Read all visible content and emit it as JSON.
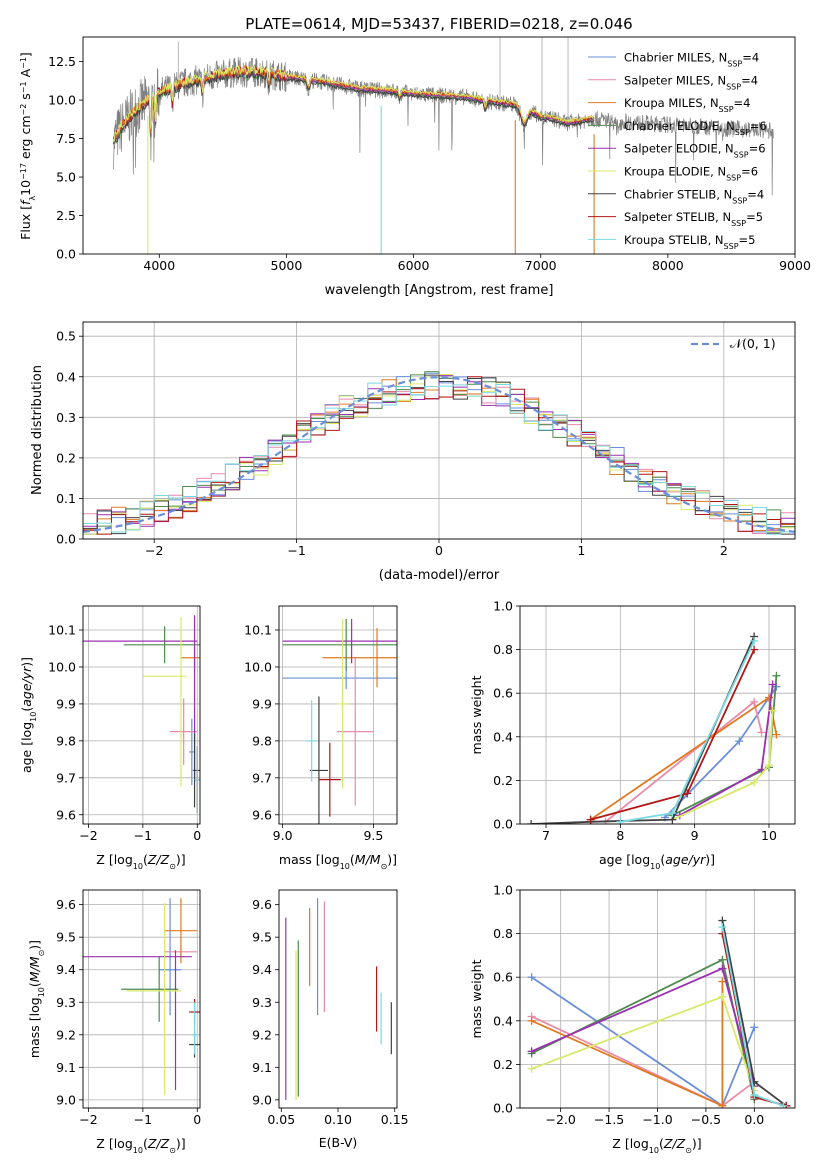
{
  "colors": [
    "#6a8fd8",
    "#e88aa8",
    "#e07a20",
    "#4f8a4f",
    "#9a30b0",
    "#d8e868",
    "#404040",
    "#b01818",
    "#7ad8e0",
    "#808080"
  ],
  "chart_data": [
    {
      "id": "spectrum",
      "type": "line",
      "title": "PLATE=0614, MJD=53437, FIBERID=0218, z=0.046",
      "xlabel": "wavelength [Angstrom, rest frame]",
      "ylabel": "Flux [fλ10⁻¹⁷ erg cm⁻² s⁻¹ A⁻¹]",
      "xlim": [
        3400,
        9000
      ],
      "ylim": [
        0,
        14.1
      ],
      "xticks": [
        4000,
        5000,
        6000,
        7000,
        8000,
        9000
      ],
      "yticks": [
        0.0,
        2.5,
        5.0,
        7.5,
        10.0,
        12.5
      ],
      "legend_position": "upper right",
      "legend": [
        "Chabrier MILES, NSSP=4",
        "Salpeter MILES, NSSP=4",
        "Kroupa MILES, NSSP=4",
        "Chabrier ELODIE, NSSP=6",
        "Salpeter ELODIE, NSSP=6",
        "Kroupa ELODIE, NSSP=6",
        "Chabrier STELIB, NSSP=4",
        "Salpeter STELIB, NSSP=5",
        "Kroupa STELIB, NSSP=5"
      ],
      "continuum": {
        "x": [
          3640,
          3700,
          3800,
          3900,
          4000,
          4200,
          4400,
          4600,
          4800,
          5000,
          5200,
          5400,
          5600,
          5800,
          6000,
          6200,
          6400,
          6600,
          6800,
          6900,
          7000,
          7100,
          7200,
          7300,
          7400,
          7600,
          7800,
          8000,
          8200,
          8400,
          8600,
          8800
        ],
        "y": [
          7.3,
          8.2,
          9.2,
          9.9,
          10.5,
          11.1,
          11.5,
          11.8,
          11.8,
          11.5,
          11.3,
          11.0,
          10.7,
          10.6,
          10.4,
          10.3,
          10.2,
          9.9,
          9.7,
          9.4,
          8.9,
          8.8,
          8.5,
          8.6,
          8.8,
          8.6,
          8.5,
          8.4,
          8.3,
          8.2,
          8.1,
          8.0
        ]
      },
      "model_extent": [
        3640,
        7420
      ],
      "data_extent": [
        3640,
        8830
      ]
    },
    {
      "id": "residuals",
      "type": "histogram",
      "xlabel": "(data-model)/error",
      "ylabel": "Normed distribution",
      "xlim": [
        -2.5,
        2.5
      ],
      "ylim": [
        0,
        0.535
      ],
      "xticks": [
        -2,
        -1,
        0,
        1,
        2
      ],
      "yticks": [
        0.0,
        0.1,
        0.2,
        0.3,
        0.4,
        0.5
      ],
      "legend": [
        "𝒩(0, 1)"
      ],
      "legend_position": "upper right",
      "bins": [
        -2.5,
        2.5,
        50
      ],
      "reference": {
        "name": "𝒩(0, 1)",
        "mean": 0,
        "sigma": 1
      }
    },
    {
      "id": "age-vs-Z",
      "type": "errorbar",
      "xlabel": "Z [log₁₀(Z/Z⊙)]",
      "ylabel": "age  [log₁₀(age/yr)]",
      "xlim": [
        -2.1,
        0.05
      ],
      "ylim": [
        9.575,
        10.165
      ],
      "xticks": [
        -2,
        -1,
        0
      ],
      "yticks": [
        9.6,
        9.7,
        9.8,
        9.9,
        10.0,
        10.1
      ],
      "points": [
        {
          "x": -0.1,
          "y": 9.77,
          "xerr": [
            0.05,
            0.05
          ],
          "yerr": [
            0.09,
            0.09
          ]
        },
        {
          "x": -0.25,
          "y": 9.825,
          "xerr": [
            0.25,
            0.25
          ],
          "yerr": [
            0.09,
            0.09
          ]
        },
        {
          "x": -0.05,
          "y": 10.025,
          "xerr": [
            0.25,
            0.25
          ],
          "yerr": [
            0.03,
            0.03
          ]
        },
        {
          "x": -0.6,
          "y": 10.06,
          "xerr": [
            0.75,
            0.75
          ],
          "yerr": [
            0.05,
            0.05
          ]
        },
        {
          "x": -0.05,
          "y": 10.07,
          "xerr": [
            2.05,
            0.05
          ],
          "yerr": [
            0.38,
            0.07
          ]
        },
        {
          "x": -0.3,
          "y": 9.975,
          "xerr": [
            0.7,
            0.1
          ],
          "yerr": [
            0.3,
            0.16
          ]
        },
        {
          "x": -0.05,
          "y": 9.72,
          "xerr": [
            0.03,
            0.22
          ],
          "yerr": [
            0.1,
            0.1
          ]
        },
        {
          "x": 0.0,
          "y": 9.695,
          "xerr": [
            0.05,
            0.05
          ],
          "yerr": [
            0.09,
            0.09
          ]
        },
        {
          "x": 0.0,
          "y": 9.695,
          "xerr": [
            0.05,
            0.05
          ],
          "yerr": [
            0.09,
            0.09
          ]
        }
      ]
    },
    {
      "id": "age-vs-mass",
      "type": "errorbar",
      "xlabel": "mass [log₁₀(M/M⊙)]",
      "ylabel": "",
      "xlim": [
        8.98,
        9.63
      ],
      "ylim": [
        9.575,
        10.165
      ],
      "xticks": [
        9.0,
        9.5
      ],
      "yticks": [
        9.6,
        9.7,
        9.8,
        9.9,
        10.0,
        10.1
      ],
      "points": [
        {
          "x": 9.35,
          "y": 9.97,
          "xerr": [
            0.35,
            0.35
          ],
          "yerr": [
            0.03,
            0.03
          ]
        },
        {
          "x": 9.4,
          "y": 9.825,
          "xerr": [
            0.1,
            0.1
          ],
          "yerr": [
            0.2,
            0.2
          ]
        },
        {
          "x": 9.52,
          "y": 10.025,
          "xerr": [
            0.3,
            0.3
          ],
          "yerr": [
            0.08,
            0.08
          ]
        },
        {
          "x": 9.35,
          "y": 10.06,
          "xerr": [
            0.35,
            0.35
          ],
          "yerr": [
            0.07,
            0.07
          ]
        },
        {
          "x": 9.38,
          "y": 10.07,
          "xerr": [
            0.38,
            0.38
          ],
          "yerr": [
            0.06,
            0.06
          ]
        },
        {
          "x": 9.33,
          "y": 9.9,
          "xerr": [
            0.03,
            0.03
          ],
          "yerr": [
            0.23,
            0.23
          ]
        },
        {
          "x": 9.2,
          "y": 9.72,
          "xerr": [
            0.05,
            0.05
          ],
          "yerr": [
            0.2,
            0.2
          ]
        },
        {
          "x": 9.26,
          "y": 9.695,
          "xerr": [
            0.06,
            0.06
          ],
          "yerr": [
            0.1,
            0.1
          ]
        },
        {
          "x": 9.16,
          "y": 9.8,
          "xerr": [
            0.03,
            0.03
          ],
          "yerr": [
            0.11,
            0.11
          ]
        }
      ]
    },
    {
      "id": "weight-vs-age",
      "type": "line",
      "xlabel": "age  [log₁₀(age/yr)]",
      "ylabel": "mass weight",
      "xlim": [
        6.65,
        10.35
      ],
      "ylim": [
        0,
        1.0
      ],
      "xticks": [
        7,
        8,
        9,
        10
      ],
      "yticks": [
        0.0,
        0.2,
        0.4,
        0.6,
        0.8,
        1.0
      ],
      "series": [
        {
          "values": [
            [
              8.6,
              0.03
            ],
            [
              9.6,
              0.38
            ],
            [
              10.1,
              0.63
            ]
          ]
        },
        {
          "values": [
            [
              7.8,
              0.01
            ],
            [
              9.8,
              0.56
            ],
            [
              9.9,
              0.42
            ]
          ]
        },
        {
          "values": [
            [
              7.6,
              0.02
            ],
            [
              10.0,
              0.58
            ],
            [
              10.1,
              0.41
            ]
          ]
        },
        {
          "values": [
            [
              8.7,
              0.04
            ],
            [
              10.0,
              0.26
            ],
            [
              10.1,
              0.68
            ]
          ]
        },
        {
          "values": [
            [
              8.8,
              0.04
            ],
            [
              9.9,
              0.25
            ],
            [
              10.05,
              0.64
            ]
          ]
        },
        {
          "values": [
            [
              8.7,
              0.02
            ],
            [
              9.8,
              0.19
            ],
            [
              10.0,
              0.27
            ],
            [
              10.05,
              0.52
            ]
          ]
        },
        {
          "values": [
            [
              6.8,
              0.0
            ],
            [
              7.6,
              0.01
            ],
            [
              8.7,
              0.02
            ],
            [
              9.8,
              0.86
            ]
          ]
        },
        {
          "values": [
            [
              7.6,
              0.02
            ],
            [
              8.9,
              0.14
            ],
            [
              9.8,
              0.8
            ]
          ]
        },
        {
          "values": [
            [
              8.0,
              0.01
            ],
            [
              8.7,
              0.05
            ],
            [
              9.8,
              0.84
            ]
          ]
        }
      ]
    },
    {
      "id": "mass-vs-Z",
      "type": "errorbar",
      "xlabel": "Z [log₁₀(Z/Z⊙)]",
      "ylabel": "mass [log₁₀(M/M⊙)]",
      "xlim": [
        -2.1,
        0.05
      ],
      "ylim": [
        8.975,
        9.645
      ],
      "xticks": [
        -2,
        -1,
        0
      ],
      "yticks": [
        9.0,
        9.1,
        9.2,
        9.3,
        9.4,
        9.5,
        9.6
      ],
      "points": [
        {
          "x": -0.5,
          "y": 9.4,
          "xerr": [
            0.2,
            0.2
          ],
          "yerr": [
            0.14,
            0.22
          ]
        },
        {
          "x": -0.3,
          "y": 9.455,
          "xerr": [
            0.3,
            0.3
          ],
          "yerr": [
            0.02,
            0.02
          ]
        },
        {
          "x": -0.3,
          "y": 9.52,
          "xerr": [
            0.3,
            0.3
          ],
          "yerr": [
            0.1,
            0.1
          ]
        },
        {
          "x": -0.7,
          "y": 9.34,
          "xerr": [
            0.7,
            0.35
          ],
          "yerr": [
            0.1,
            0.1
          ]
        },
        {
          "x": -0.4,
          "y": 9.44,
          "xerr": [
            1.7,
            0.3
          ],
          "yerr": [
            0.41,
            0.02
          ]
        },
        {
          "x": -0.6,
          "y": 9.335,
          "xerr": [
            0.7,
            0.3
          ],
          "yerr": [
            0.32,
            0.27
          ]
        },
        {
          "x": -0.05,
          "y": 9.17,
          "xerr": [
            0.1,
            0.1
          ],
          "yerr": [
            0.04,
            0.04
          ]
        },
        {
          "x": -0.05,
          "y": 9.27,
          "xerr": [
            0.1,
            0.1
          ],
          "yerr": [
            0.04,
            0.04
          ]
        },
        {
          "x": -0.05,
          "y": 9.2,
          "xerr": [
            0.05,
            0.05
          ],
          "yerr": [
            0.06,
            0.1
          ]
        }
      ]
    },
    {
      "id": "mass-vs-EBV",
      "type": "errorbar",
      "xlabel": "E(B-V)",
      "ylabel": "",
      "xlim": [
        0.048,
        0.152
      ],
      "ylim": [
        8.975,
        9.645
      ],
      "xticks": [
        0.05,
        0.1,
        0.15
      ],
      "yticks": [
        9.0,
        9.1,
        9.2,
        9.3,
        9.4,
        9.5,
        9.6
      ],
      "points": [
        {
          "x": 0.082,
          "y": 9.44,
          "xerr": [
            0,
            0
          ],
          "yerr": [
            0.18,
            0.18
          ]
        },
        {
          "x": 0.088,
          "y": 9.44,
          "xerr": [
            0,
            0
          ],
          "yerr": [
            0.17,
            0.17
          ]
        },
        {
          "x": 0.075,
          "y": 9.47,
          "xerr": [
            0,
            0
          ],
          "yerr": [
            0.12,
            0.12
          ]
        },
        {
          "x": 0.065,
          "y": 9.25,
          "xerr": [
            0,
            0
          ],
          "yerr": [
            0.24,
            0.24
          ]
        },
        {
          "x": 0.054,
          "y": 9.28,
          "xerr": [
            0,
            0
          ],
          "yerr": [
            0.28,
            0.28
          ]
        },
        {
          "x": 0.063,
          "y": 9.23,
          "xerr": [
            0,
            0
          ],
          "yerr": [
            0.23,
            0.23
          ]
        },
        {
          "x": 0.147,
          "y": 9.22,
          "xerr": [
            0,
            0
          ],
          "yerr": [
            0.08,
            0.08
          ]
        },
        {
          "x": 0.134,
          "y": 9.31,
          "xerr": [
            0,
            0
          ],
          "yerr": [
            0.1,
            0.1
          ]
        },
        {
          "x": 0.138,
          "y": 9.25,
          "xerr": [
            0,
            0
          ],
          "yerr": [
            0.08,
            0.08
          ]
        }
      ]
    },
    {
      "id": "weight-vs-Z",
      "type": "line",
      "xlabel": "Z [log₁₀(Z/Z⊙)]",
      "ylabel": "mass weight",
      "xlim": [
        -2.42,
        0.42
      ],
      "ylim": [
        0,
        1.0
      ],
      "xticks": [
        -2.0,
        -1.5,
        -1.0,
        -0.5,
        0.0
      ],
      "yticks": [
        0.0,
        0.2,
        0.4,
        0.6,
        0.8,
        1.0
      ],
      "series": [
        {
          "values": [
            [
              -2.3,
              0.6
            ],
            [
              -0.33,
              0.01
            ],
            [
              0.0,
              0.37
            ]
          ]
        },
        {
          "values": [
            [
              -2.3,
              0.42
            ],
            [
              -0.33,
              0.01
            ],
            [
              0.0,
              0.12
            ]
          ]
        },
        {
          "values": [
            [
              -2.3,
              0.4
            ],
            [
              -0.33,
              0.01
            ],
            [
              -0.33,
              0.58
            ]
          ]
        },
        {
          "values": [
            [
              -2.3,
              0.25
            ],
            [
              -0.33,
              0.68
            ],
            [
              0.0,
              0.04
            ]
          ]
        },
        {
          "values": [
            [
              -2.3,
              0.26
            ],
            [
              -0.33,
              0.64
            ],
            [
              0.0,
              0.1
            ]
          ]
        },
        {
          "values": [
            [
              -2.3,
              0.18
            ],
            [
              -0.33,
              0.51
            ],
            [
              0.0,
              0.08
            ]
          ]
        },
        {
          "values": [
            [
              -0.33,
              0.86
            ],
            [
              0.0,
              0.12
            ],
            [
              0.33,
              0.01
            ]
          ]
        },
        {
          "values": [
            [
              -0.33,
              0.8
            ],
            [
              0.0,
              0.05
            ],
            [
              0.33,
              0.01
            ]
          ]
        },
        {
          "values": [
            [
              -0.33,
              0.83
            ],
            [
              0.0,
              0.06
            ],
            [
              0.3,
              0.01
            ]
          ]
        }
      ]
    }
  ]
}
